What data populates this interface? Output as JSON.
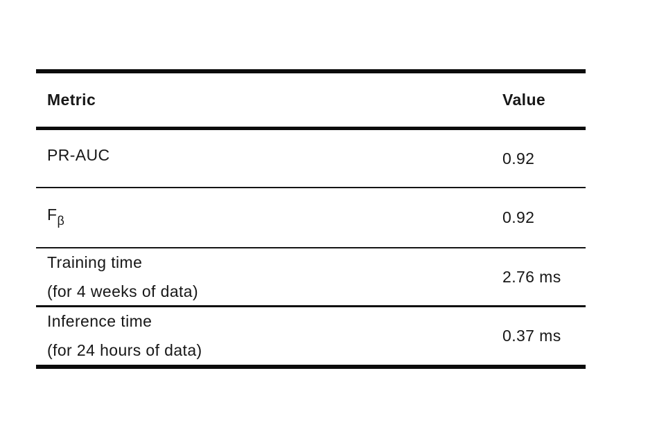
{
  "page": {
    "background_color": "#ffffff",
    "text_color": "#171717",
    "rule_color": "#0c0c0c"
  },
  "table": {
    "columns": [
      {
        "label": "Metric"
      },
      {
        "label": "Value"
      }
    ],
    "rows": [
      {
        "metric": "PR-AUC",
        "metric_sub": "",
        "metric_line2": "",
        "value": "0.92"
      },
      {
        "metric": "F",
        "metric_sub": "β",
        "metric_line2": "",
        "value": "0.92"
      },
      {
        "metric": "Training time",
        "metric_sub": "",
        "metric_line2": "(for 4 weeks of data)",
        "value": "2.76 ms"
      },
      {
        "metric": "Inference time",
        "metric_sub": "",
        "metric_line2": "(for 24 hours of data)",
        "value": "0.37 ms"
      }
    ]
  }
}
